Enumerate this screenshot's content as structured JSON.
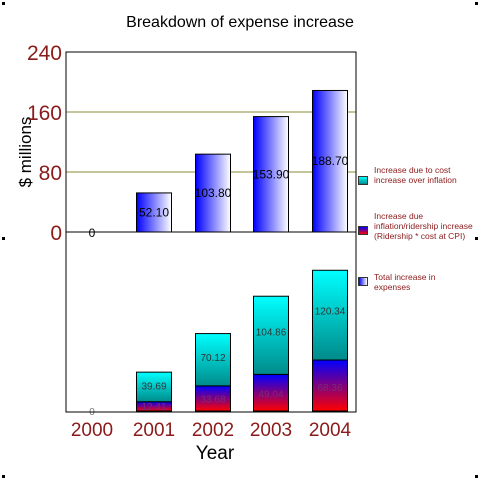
{
  "chart_data": {
    "type": "bar",
    "title": "Breakdown of expense increase",
    "xlabel": "Year",
    "ylabel": "$ millions",
    "categories": [
      "2000",
      "2001",
      "2002",
      "2003",
      "2004"
    ],
    "yticks": [
      "0",
      "80",
      "160",
      "240"
    ],
    "ylim": [
      0,
      240
    ],
    "grid": true,
    "legend_position": "right",
    "top_panel": {
      "series": [
        {
          "name": "Total increase in expenses",
          "values": [
            0,
            52.1,
            103.8,
            153.9,
            188.7
          ],
          "labels": [
            "0",
            "52.10",
            "103.80",
            "153.90",
            "188.70"
          ]
        }
      ]
    },
    "bottom_panel": {
      "stacked": true,
      "series": [
        {
          "name": "Increase due inflation/ridership increase (Ridership * cost at CPI)",
          "values": [
            0,
            12.41,
            33.68,
            49.04,
            68.36
          ],
          "labels": [
            "",
            "12.41",
            "33.68",
            "49.04",
            "68.36"
          ]
        },
        {
          "name": "Increase due to cost increase over inflation",
          "values": [
            0,
            39.69,
            70.12,
            104.86,
            120.34
          ],
          "labels": [
            "0",
            "39.69",
            "70.12",
            "104.86",
            "120.34"
          ]
        }
      ]
    }
  },
  "legend": [
    {
      "label": "Increase due to cost increase over inflation",
      "swatch": "teal"
    },
    {
      "label": "Increase due inflation/ridership increase (Ridership * cost at CPI)",
      "swatch": "red-blue"
    },
    {
      "label": "Total increase in expenses",
      "swatch": "blue-white"
    }
  ],
  "colors": {
    "axis_text": "#8b1a1a",
    "grid": "#8b8b3a",
    "blue": "#0000ff",
    "cyan": "#00ffff",
    "teal": "#009090",
    "red": "#ff0000"
  }
}
